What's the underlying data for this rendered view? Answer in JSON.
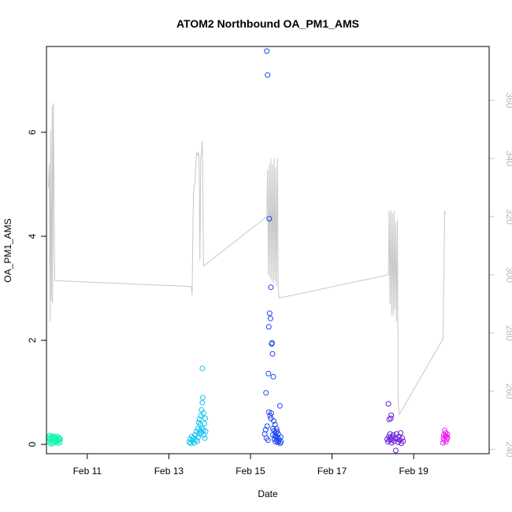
{
  "chart_data": {
    "type": "scatter",
    "title": "ATOM2 Northbound OA_PM1_AMS",
    "xlabel": "Date",
    "ylabel": "OA_PM1_AMS",
    "x_unit": "days (Feb, 2017)",
    "xlim": [
      10.0,
      20.85
    ],
    "ylim": [
      -0.18,
      7.65
    ],
    "ylim_right": [
      238.5,
      378.5
    ],
    "x_ticks": [
      {
        "value": 11,
        "label": "Feb 11"
      },
      {
        "value": 13,
        "label": "Feb 13"
      },
      {
        "value": 15,
        "label": "Feb 15"
      },
      {
        "value": 17,
        "label": "Feb 17"
      },
      {
        "value": 19,
        "label": "Feb 19"
      }
    ],
    "y_ticks": [
      0,
      2,
      4,
      6
    ],
    "y_ticks_right": [
      240,
      260,
      280,
      300,
      320,
      340,
      360
    ],
    "grid": false,
    "legend": "none",
    "series": [
      {
        "color": "#19f5b0",
        "points": [
          [
            10.05,
            0.14
          ],
          [
            10.06,
            0.05
          ],
          [
            10.07,
            0.1
          ],
          [
            10.08,
            0.17
          ],
          [
            10.09,
            0.02
          ],
          [
            10.1,
            0.12
          ],
          [
            10.11,
            0.06
          ],
          [
            10.12,
            0.15
          ],
          [
            10.13,
            0.01
          ],
          [
            10.14,
            0.09
          ],
          [
            10.15,
            0.13
          ],
          [
            10.16,
            0.04
          ],
          [
            10.17,
            0.16
          ],
          [
            10.18,
            0.08
          ],
          [
            10.19,
            0.11
          ],
          [
            10.2,
            0.03
          ],
          [
            10.21,
            0.14
          ],
          [
            10.22,
            0.07
          ],
          [
            10.23,
            0.12
          ],
          [
            10.24,
            0.05
          ],
          [
            10.25,
            0.1
          ],
          [
            10.26,
            0.15
          ],
          [
            10.27,
            0.06
          ],
          [
            10.28,
            0.09
          ],
          [
            10.29,
            0.02
          ],
          [
            10.3,
            0.13
          ],
          [
            10.31,
            0.08
          ],
          [
            10.32,
            0.11
          ],
          [
            10.33,
            0.04
          ],
          [
            10.34,
            0.1
          ]
        ]
      },
      {
        "color": "#11c3f2",
        "points": [
          [
            13.5,
            0.04
          ],
          [
            13.52,
            0.1
          ],
          [
            13.54,
            0.02
          ],
          [
            13.56,
            0.15
          ],
          [
            13.58,
            0.07
          ],
          [
            13.6,
            0.12
          ],
          [
            13.62,
            0.03
          ],
          [
            13.64,
            0.18
          ],
          [
            13.66,
            0.08
          ],
          [
            13.68,
            0.25
          ],
          [
            13.7,
            0.06
          ],
          [
            13.71,
            0.3
          ],
          [
            13.72,
            0.14
          ],
          [
            13.73,
            0.42
          ],
          [
            13.74,
            0.2
          ],
          [
            13.75,
            0.48
          ],
          [
            13.76,
            0.26
          ],
          [
            13.77,
            0.38
          ],
          [
            13.78,
            0.55
          ],
          [
            13.79,
            0.22
          ],
          [
            13.8,
            0.66
          ],
          [
            13.81,
            0.32
          ],
          [
            13.82,
            0.8
          ],
          [
            13.83,
            0.9
          ],
          [
            13.84,
            0.28
          ],
          [
            13.85,
            0.6
          ],
          [
            13.86,
            0.18
          ],
          [
            13.87,
            0.4
          ],
          [
            13.88,
            0.12
          ],
          [
            13.89,
            0.5
          ],
          [
            13.9,
            0.25
          ],
          [
            13.82,
            1.46
          ]
        ]
      },
      {
        "color": "#1a44f0",
        "points": [
          [
            15.35,
            0.2
          ],
          [
            15.37,
            0.28
          ],
          [
            15.38,
            0.99
          ],
          [
            15.39,
            0.12
          ],
          [
            15.4,
            7.56
          ],
          [
            15.41,
            0.35
          ],
          [
            15.42,
            7.1
          ],
          [
            15.43,
            0.08
          ],
          [
            15.44,
            1.36
          ],
          [
            15.45,
            2.26
          ],
          [
            15.46,
            4.34
          ],
          [
            15.47,
            2.52
          ],
          [
            15.48,
            0.55
          ],
          [
            15.49,
            2.42
          ],
          [
            15.5,
            3.02
          ],
          [
            15.51,
            0.6
          ],
          [
            15.52,
            1.93
          ],
          [
            15.53,
            1.95
          ],
          [
            15.54,
            1.74
          ],
          [
            15.55,
            0.18
          ],
          [
            15.56,
            1.3
          ],
          [
            15.57,
            0.45
          ],
          [
            15.58,
            0.26
          ],
          [
            15.59,
            0.1
          ],
          [
            15.6,
            0.38
          ],
          [
            15.61,
            0.05
          ],
          [
            15.62,
            0.22
          ],
          [
            15.63,
            0.15
          ],
          [
            15.64,
            0.3
          ],
          [
            15.65,
            0.08
          ],
          [
            15.66,
            0.12
          ],
          [
            15.67,
            0.04
          ],
          [
            15.68,
            0.2
          ],
          [
            15.69,
            0.06
          ],
          [
            15.7,
            0.1
          ],
          [
            15.72,
            0.74
          ],
          [
            15.73,
            0.02
          ],
          [
            15.74,
            0.14
          ],
          [
            15.75,
            0.05
          ],
          [
            15.45,
            0.62
          ],
          [
            15.5,
            0.5
          ],
          [
            15.55,
            0.3
          ],
          [
            15.6,
            0.16
          ],
          [
            15.65,
            0.25
          ]
        ]
      },
      {
        "color": "#6a1fd8",
        "points": [
          [
            18.35,
            0.1
          ],
          [
            18.37,
            0.05
          ],
          [
            18.38,
            0.78
          ],
          [
            18.39,
            0.15
          ],
          [
            18.4,
            0.48
          ],
          [
            18.41,
            0.08
          ],
          [
            18.42,
            0.2
          ],
          [
            18.43,
            0.12
          ],
          [
            18.44,
            0.5
          ],
          [
            18.45,
            0.56
          ],
          [
            18.46,
            0.03
          ],
          [
            18.47,
            0.14
          ],
          [
            18.48,
            0.09
          ],
          [
            18.5,
            0.18
          ],
          [
            18.52,
            0.06
          ],
          [
            18.54,
            0.12
          ],
          [
            18.56,
            -0.12
          ],
          [
            18.58,
            0.2
          ],
          [
            18.6,
            0.1
          ],
          [
            18.62,
            0.04
          ],
          [
            18.64,
            0.15
          ],
          [
            18.66,
            0.08
          ],
          [
            18.68,
            0.22
          ],
          [
            18.7,
            0.02
          ],
          [
            18.72,
            0.12
          ],
          [
            18.74,
            0.06
          ]
        ]
      },
      {
        "color": "#f01cf0",
        "points": [
          [
            19.72,
            0.03
          ],
          [
            19.73,
            0.12
          ],
          [
            19.74,
            0.18
          ],
          [
            19.75,
            0.08
          ],
          [
            19.76,
            0.27
          ],
          [
            19.77,
            0.15
          ],
          [
            19.78,
            0.22
          ],
          [
            19.79,
            0.05
          ],
          [
            19.8,
            0.16
          ],
          [
            19.81,
            0.1
          ],
          [
            19.82,
            0.2
          ],
          [
            19.83,
            0.13
          ]
        ]
      }
    ],
    "right_axis_line": {
      "color": "#c8c8c8",
      "points": [
        [
          10.05,
          330
        ],
        [
          10.07,
          338
        ],
        [
          10.09,
          284
        ],
        [
          10.1,
          350
        ],
        [
          10.12,
          291
        ],
        [
          10.14,
          358
        ],
        [
          10.15,
          290
        ],
        [
          10.17,
          359
        ],
        [
          10.2,
          298
        ],
        [
          13.55,
          296
        ],
        [
          13.57,
          293
        ],
        [
          13.6,
          328
        ],
        [
          13.62,
          330
        ],
        [
          13.64,
          332
        ],
        [
          13.66,
          338
        ],
        [
          13.68,
          342
        ],
        [
          13.7,
          341
        ],
        [
          13.72,
          342
        ],
        [
          13.74,
          341
        ],
        [
          13.76,
          305
        ],
        [
          13.78,
          340
        ],
        [
          13.8,
          342
        ],
        [
          13.82,
          346
        ],
        [
          13.85,
          303
        ],
        [
          15.4,
          320
        ],
        [
          15.42,
          336
        ],
        [
          15.44,
          300
        ],
        [
          15.46,
          338
        ],
        [
          15.48,
          299
        ],
        [
          15.5,
          340
        ],
        [
          15.52,
          298
        ],
        [
          15.54,
          338
        ],
        [
          15.56,
          297
        ],
        [
          15.58,
          340
        ],
        [
          15.6,
          298
        ],
        [
          15.62,
          337
        ],
        [
          15.64,
          296
        ],
        [
          15.66,
          340
        ],
        [
          15.68,
          296
        ],
        [
          15.7,
          292
        ],
        [
          18.38,
          300
        ],
        [
          18.4,
          322
        ],
        [
          18.42,
          290
        ],
        [
          18.44,
          322
        ],
        [
          18.46,
          286
        ],
        [
          18.48,
          321
        ],
        [
          18.5,
          286
        ],
        [
          18.52,
          322
        ],
        [
          18.54,
          288
        ],
        [
          18.56,
          318
        ],
        [
          18.58,
          284
        ],
        [
          18.6,
          319
        ],
        [
          18.62,
          256
        ],
        [
          18.65,
          252
        ],
        [
          19.72,
          278
        ],
        [
          19.74,
          300
        ],
        [
          19.76,
          322
        ],
        [
          19.78,
          321
        ]
      ]
    }
  }
}
